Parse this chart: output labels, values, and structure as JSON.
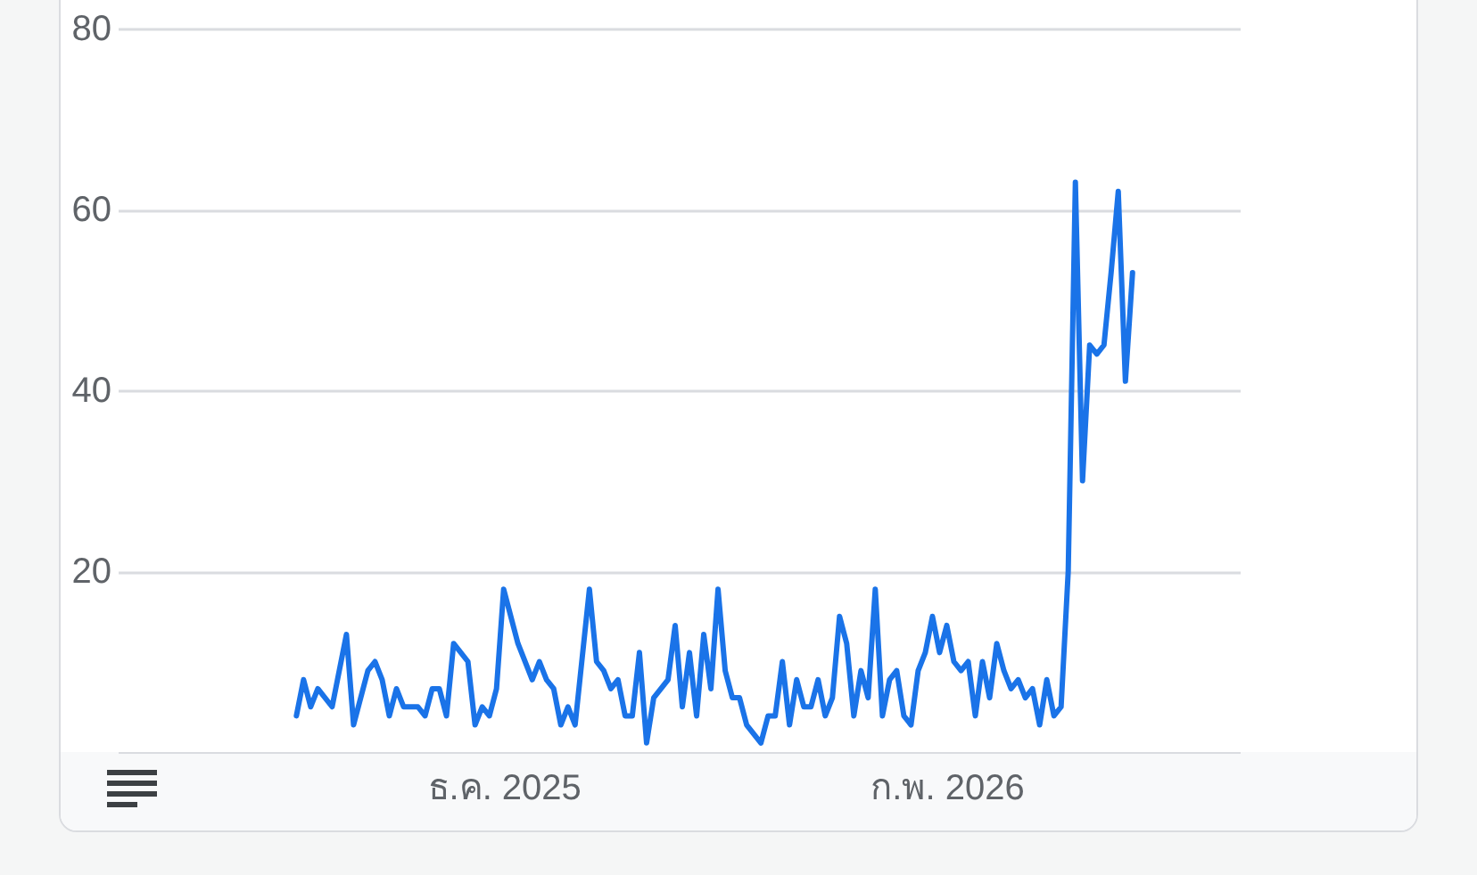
{
  "chart_data": {
    "type": "line",
    "x": [
      "2025-11-02",
      "2025-11-03",
      "2025-11-04",
      "2025-11-05",
      "2025-11-07",
      "2025-11-09",
      "2025-11-10",
      "2025-11-12",
      "2025-11-13",
      "2025-11-14",
      "2025-11-15",
      "2025-11-16",
      "2025-11-17",
      "2025-11-19",
      "2025-11-20",
      "2025-11-21",
      "2025-11-22",
      "2025-11-23",
      "2025-11-24",
      "2025-11-26",
      "2025-11-27",
      "2025-11-28",
      "2025-11-29",
      "2025-11-30",
      "2025-12-01",
      "2025-12-03",
      "2025-12-05",
      "2025-12-06",
      "2025-12-07",
      "2025-12-08",
      "2025-12-09",
      "2025-12-10",
      "2025-12-11",
      "2025-12-13",
      "2025-12-14",
      "2025-12-15",
      "2025-12-16",
      "2025-12-17",
      "2025-12-18",
      "2025-12-19",
      "2025-12-20",
      "2025-12-21",
      "2025-12-22",
      "2025-12-24",
      "2025-12-25",
      "2025-12-26",
      "2025-12-27",
      "2025-12-28",
      "2025-12-29",
      "2025-12-30",
      "2025-12-31",
      "2026-01-01",
      "2026-01-02",
      "2026-01-03",
      "2026-01-04",
      "2026-01-06",
      "2026-01-07",
      "2026-01-08",
      "2026-01-09",
      "2026-01-10",
      "2026-01-11",
      "2026-01-12",
      "2026-01-13",
      "2026-01-14",
      "2026-01-15",
      "2026-01-16",
      "2026-01-17",
      "2026-01-18",
      "2026-01-19",
      "2026-01-20",
      "2026-01-21",
      "2026-01-22",
      "2026-01-23",
      "2026-01-24",
      "2026-01-25",
      "2026-01-26",
      "2026-01-27",
      "2026-01-28",
      "2026-01-29",
      "2026-01-30",
      "2026-01-31",
      "2026-02-01",
      "2026-02-02",
      "2026-02-03",
      "2026-02-04",
      "2026-02-05",
      "2026-02-06",
      "2026-02-07",
      "2026-02-08",
      "2026-02-09",
      "2026-02-10",
      "2026-02-11",
      "2026-02-12",
      "2026-02-13",
      "2026-02-14",
      "2026-02-15",
      "2026-02-16",
      "2026-02-17",
      "2026-02-18",
      "2026-02-19",
      "2026-02-20",
      "2026-02-21",
      "2026-02-22",
      "2026-02-23",
      "2026-02-24",
      "2026-02-25",
      "2026-02-26",
      "2026-02-27"
    ],
    "series": [
      {
        "color": "#1a73e8",
        "values": [
          4,
          8,
          5,
          7,
          5,
          13,
          3,
          9,
          10,
          8,
          4,
          7,
          5,
          5,
          4,
          7,
          7,
          4,
          12,
          10,
          3,
          5,
          4,
          7,
          18,
          12,
          8,
          10,
          8,
          7,
          3,
          5,
          3,
          18,
          10,
          9,
          7,
          8,
          4,
          4,
          11,
          1,
          6,
          8,
          14,
          5,
          11,
          4,
          13,
          7,
          18,
          9,
          6,
          6,
          3,
          1,
          4,
          4,
          10,
          3,
          8,
          5,
          5,
          8,
          4,
          6,
          15,
          12,
          4,
          9,
          6,
          18,
          4,
          8,
          9,
          4,
          3,
          9,
          11,
          15,
          11,
          14,
          10,
          9,
          10,
          4,
          10,
          6,
          12,
          9,
          7,
          8,
          6,
          7,
          3,
          8,
          4,
          5,
          20,
          63,
          30,
          45,
          44,
          45,
          53,
          62,
          41,
          53
        ]
      }
    ],
    "xlim": [
      "2025-10-08",
      "2026-03-14"
    ],
    "xticks": [
      {
        "value": "2025-12-01",
        "label": "ธ.ค. 2025"
      },
      {
        "value": "2026-02-01",
        "label": "ก.พ. 2026"
      }
    ],
    "ylim": [
      0,
      80
    ],
    "yticks": [
      20,
      40,
      60,
      80
    ],
    "grid": "y",
    "line_style": "solid"
  }
}
